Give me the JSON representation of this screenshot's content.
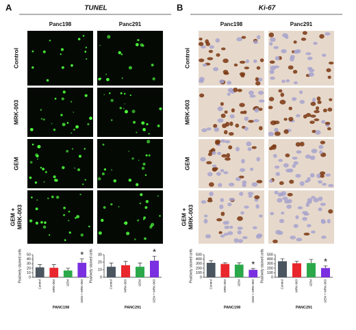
{
  "panels": [
    {
      "label": "A",
      "title": "TUNEL",
      "columns": [
        "Panc198",
        "Panc291"
      ],
      "rows": [
        [
          "Control"
        ],
        [
          "MRK-003"
        ],
        [
          "GEM"
        ],
        [
          "GEM +",
          "MRK-003"
        ]
      ]
    },
    {
      "label": "B",
      "title": "Ki-67",
      "columns": [
        "Panc198",
        "Panc291"
      ],
      "rows": [
        [
          "Control"
        ],
        [
          "MRK-003"
        ],
        [
          "GEM"
        ],
        [
          "GEM +",
          "MRK-003"
        ]
      ]
    }
  ],
  "chart_data": [
    {
      "type": "bar",
      "y_label": "Positively stained cells",
      "x_label": "PANC198",
      "categories": [
        "Control",
        "MRK-003",
        "GEM",
        "GEM + MRK-003"
      ],
      "values": [
        22,
        21,
        15,
        32
      ],
      "errors": [
        6,
        7,
        5,
        9
      ],
      "colors": [
        "#4a5560",
        "#e8262b",
        "#2ba84a",
        "#7a2fe0"
      ],
      "ylim": [
        0,
        50
      ],
      "yticks": [
        0,
        10,
        20,
        30,
        40,
        50
      ],
      "annotation": "*"
    },
    {
      "type": "bar",
      "y_label": "Positively stained cells",
      "x_label": "PANC291",
      "categories": [
        "Control",
        "MRK-003",
        "GEM",
        "GEM + MRK-003"
      ],
      "values": [
        14,
        16,
        14,
        22
      ],
      "errors": [
        5,
        5,
        5,
        6
      ],
      "colors": [
        "#4a5560",
        "#e8262b",
        "#2ba84a",
        "#7a2fe0"
      ],
      "ylim": [
        0,
        30
      ],
      "yticks": [
        0,
        10,
        20,
        30
      ],
      "annotation": "*"
    },
    {
      "type": "bar",
      "y_label": "Positively stained cells",
      "x_label": "PANC198",
      "categories": [
        "Control",
        "MRK-003",
        "GEM",
        "GEM + MRK-003"
      ],
      "values": [
        320,
        295,
        280,
        165
      ],
      "errors": [
        45,
        25,
        40,
        30
      ],
      "colors": [
        "#4a5560",
        "#e8262b",
        "#2ba84a",
        "#7a2fe0"
      ],
      "ylim": [
        0,
        500
      ],
      "yticks": [
        0,
        100,
        200,
        300,
        400,
        500
      ],
      "annotation": "*"
    },
    {
      "type": "bar",
      "y_label": "Positively stained cells",
      "x_label": "PANC291",
      "categories": [
        "Control",
        "MRK-003",
        "GEM",
        "GEM + MRK-003"
      ],
      "values": [
        355,
        310,
        315,
        205
      ],
      "errors": [
        55,
        45,
        80,
        50
      ],
      "colors": [
        "#4a5560",
        "#e8262b",
        "#2ba84a",
        "#7a2fe0"
      ],
      "ylim": [
        0,
        500
      ],
      "yticks": [
        0,
        100,
        200,
        300,
        400,
        500
      ],
      "annotation": "*"
    }
  ]
}
